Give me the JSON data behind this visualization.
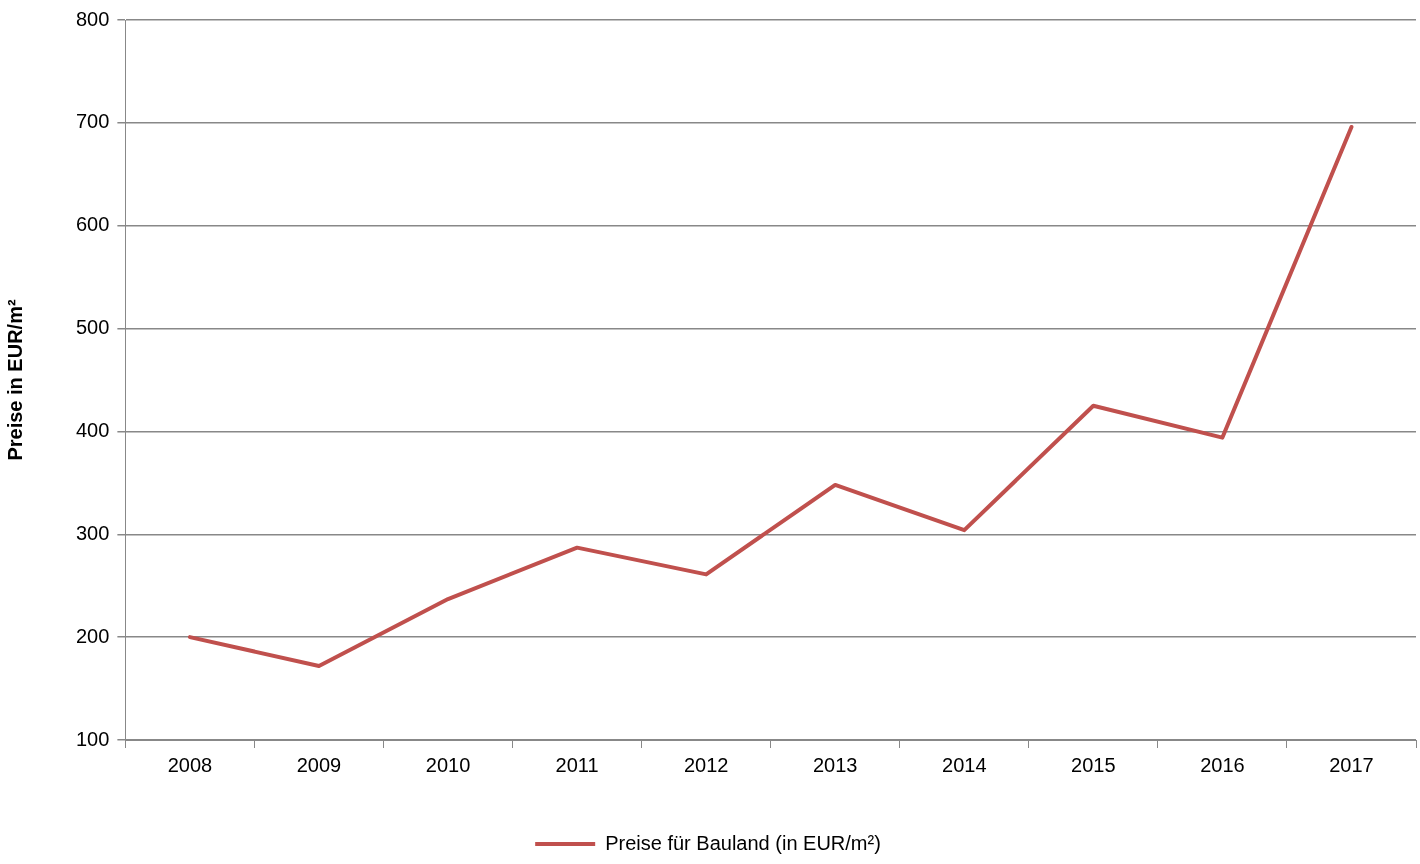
{
  "chart_data": {
    "type": "line",
    "ylabel": "Preise in EUR/m²",
    "categories": [
      "2008",
      "2009",
      "2010",
      "2011",
      "2012",
      "2013",
      "2014",
      "2015",
      "2016",
      "2017"
    ],
    "series": [
      {
        "name": "Preise für Bauland (in EUR/m²)",
        "color": "#c0504d",
        "values": [
          200,
          172,
          237,
          287,
          261,
          348,
          304,
          425,
          394,
          696
        ]
      }
    ],
    "ylim": [
      100,
      800
    ],
    "yticks": [
      100,
      200,
      300,
      400,
      500,
      600,
      700,
      800
    ],
    "grid": "y",
    "legend": "bottom",
    "marker": "none",
    "line_style": "solid"
  }
}
